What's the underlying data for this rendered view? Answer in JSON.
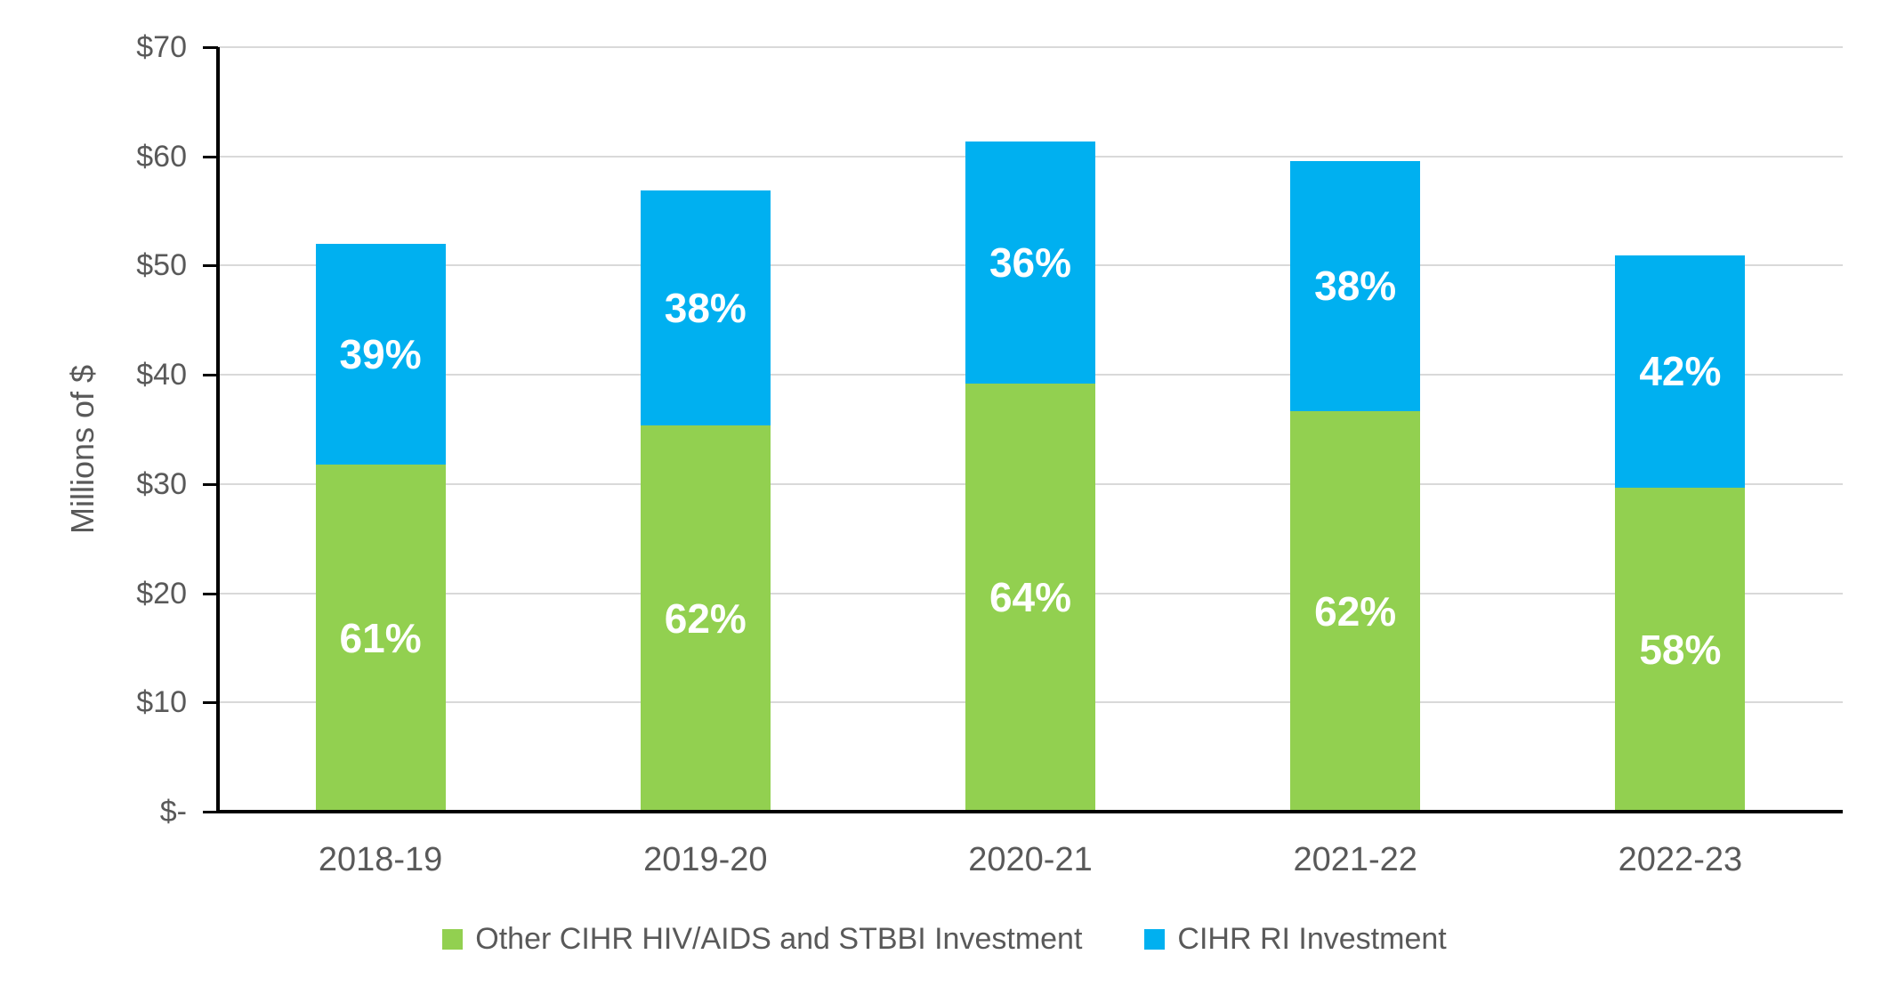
{
  "chart_data": {
    "type": "bar",
    "stacked": true,
    "title": "",
    "categories": [
      "2018-19",
      "2019-20",
      "2020-21",
      "2021-22",
      "2022-23"
    ],
    "series": [
      {
        "name": "Other CIHR HIV/AIDS and STBBI Investment",
        "color": "#92D050",
        "values": [
          31.8,
          35.4,
          39.2,
          36.7,
          29.7
        ],
        "percent_labels": [
          "61%",
          "62%",
          "64%",
          "62%",
          "58%"
        ]
      },
      {
        "name": "CIHR RI Investment",
        "color": "#00B0F0",
        "values": [
          20.2,
          21.5,
          22.2,
          22.9,
          21.2
        ],
        "percent_labels": [
          "39%",
          "38%",
          "36%",
          "38%",
          "42%"
        ]
      }
    ],
    "totals": [
      52.0,
      56.9,
      61.4,
      59.6,
      50.9
    ],
    "xlabel": "",
    "ylabel": "Millions of $",
    "ylim": [
      0,
      70
    ],
    "yticks": [
      {
        "value": 0,
        "label": "$-"
      },
      {
        "value": 10,
        "label": "$10"
      },
      {
        "value": 20,
        "label": "$20"
      },
      {
        "value": 30,
        "label": "$30"
      },
      {
        "value": 40,
        "label": "$40"
      },
      {
        "value": 50,
        "label": "$50"
      },
      {
        "value": 60,
        "label": "$60"
      },
      {
        "value": 70,
        "label": "$70"
      }
    ],
    "grid": true,
    "legend_position": "bottom"
  },
  "colors": {
    "gridline": "#D9D9D9",
    "axis": "#000000",
    "tick_text": "#595959",
    "bar_label_text": "#FFFFFF",
    "background": "#FFFFFF"
  }
}
